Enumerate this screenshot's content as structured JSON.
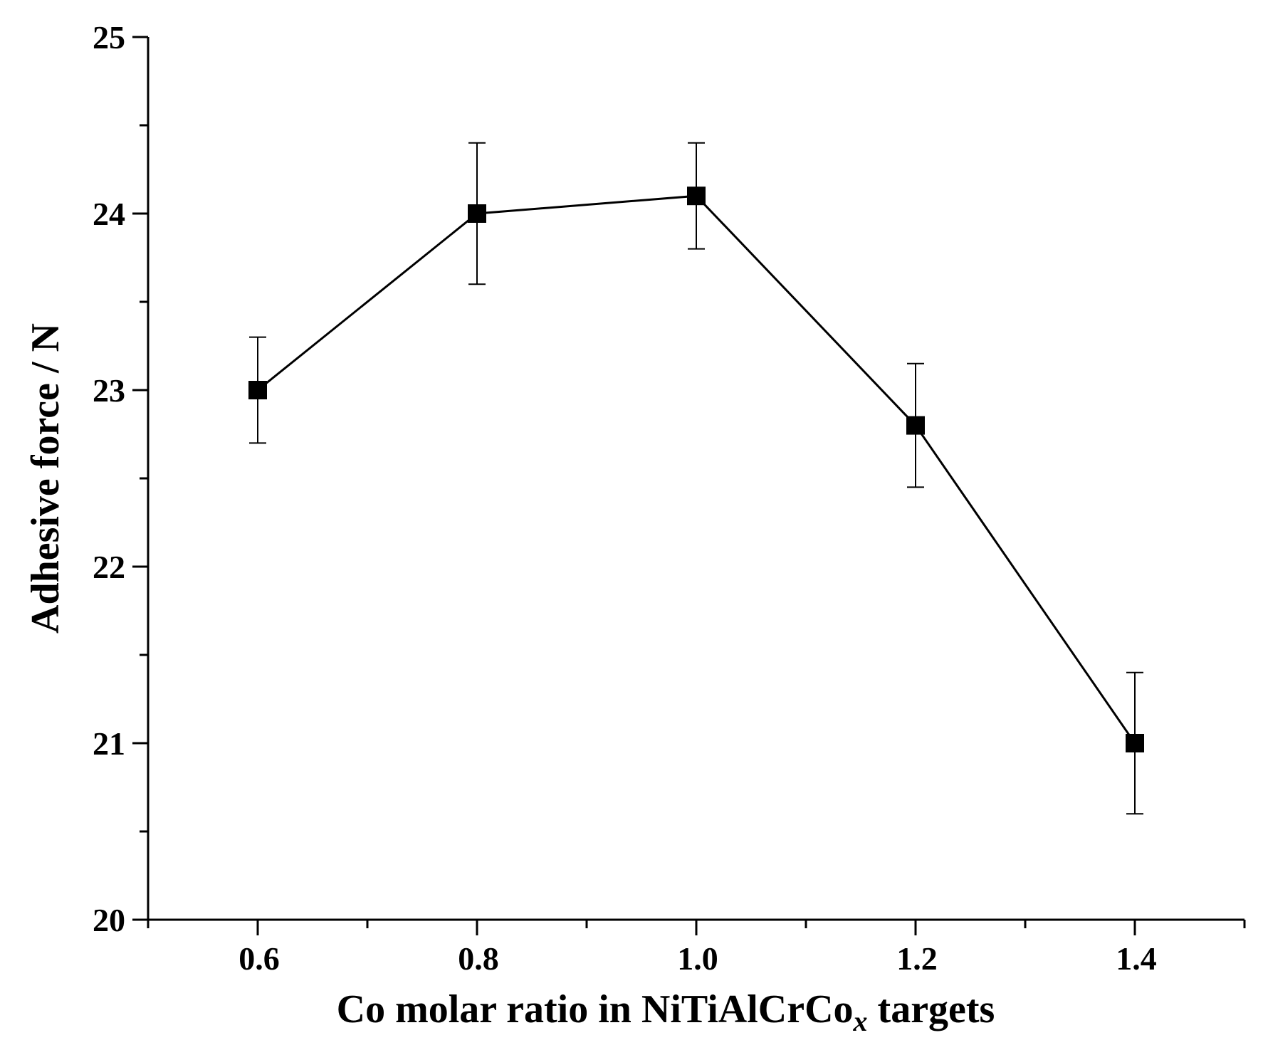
{
  "chart_data": {
    "type": "line",
    "title": "",
    "xlabel": {
      "main": "Co molar ratio in NiTiAlCrCo",
      "subscript": "x",
      "suffix": " targets"
    },
    "ylabel": "Adhesive force / N",
    "xlim": [
      0.5,
      1.5
    ],
    "ylim": [
      20,
      25
    ],
    "x_ticks": [
      "0.6",
      "0.8",
      "1.0",
      "1.2",
      "1.4"
    ],
    "y_ticks": [
      "20",
      "21",
      "22",
      "23",
      "24",
      "25"
    ],
    "x_minor_ticks": [
      0.5,
      0.7,
      0.9,
      1.1,
      1.3,
      1.5
    ],
    "y_minor_ticks": [
      20.5,
      21.5,
      22.5,
      23.5,
      24.5
    ],
    "grid": false,
    "series": [
      {
        "name": "Adhesive force",
        "marker": "square",
        "color": "#000000",
        "x": [
          0.6,
          0.8,
          1.0,
          1.2,
          1.4
        ],
        "y": [
          23.0,
          24.0,
          24.1,
          22.8,
          21.0
        ],
        "error_upper": [
          23.3,
          24.4,
          24.4,
          23.15,
          21.4
        ],
        "error_lower": [
          22.7,
          23.6,
          23.8,
          22.45,
          20.6
        ]
      }
    ]
  }
}
